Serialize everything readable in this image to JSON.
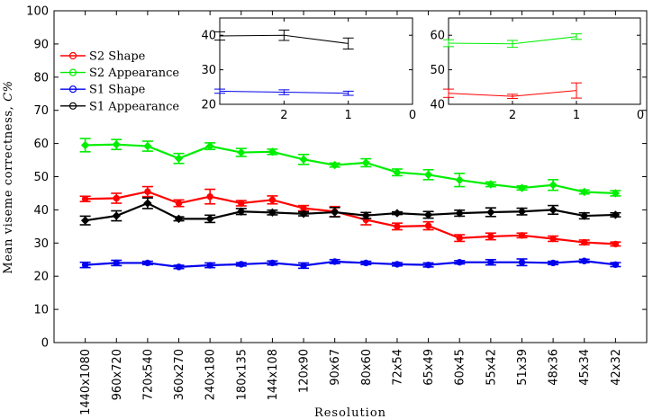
{
  "chart_data": {
    "type": "line",
    "xlabel": "Resolution",
    "ylabel": "Mean viseme correctness, C%",
    "ylabel_text": "Mean viseme correctness, ",
    "ylabel_symbol": "C%",
    "ylim": [
      0,
      100
    ],
    "yticks": [
      0,
      10,
      20,
      30,
      40,
      50,
      60,
      70,
      80,
      90,
      100
    ],
    "categories": [
      "1440x1080",
      "960x720",
      "720x540",
      "360x270",
      "240x180",
      "180x135",
      "144x108",
      "120x90",
      "90x67",
      "80x60",
      "72x54",
      "65x49",
      "60x45",
      "55x42",
      "51x39",
      "48x36",
      "45x34",
      "42x32"
    ],
    "legend_position": "upper-left",
    "series": [
      {
        "name": "S2 Shape",
        "color": "#ff0000",
        "marker": "circle",
        "values": [
          43.3,
          43.5,
          45.5,
          42.0,
          44.0,
          42.0,
          43.0,
          40.5,
          39.5,
          37.0,
          35.0,
          35.2,
          31.5,
          32.0,
          32.3,
          31.3,
          30.2,
          29.7
        ],
        "errors": [
          0.8,
          1.5,
          1.5,
          1.0,
          2.2,
          0.8,
          1.2,
          0.8,
          1.5,
          1.5,
          1.0,
          1.2,
          1.0,
          1.0,
          0.7,
          0.8,
          0.7,
          0.6
        ]
      },
      {
        "name": "S2 Appearance",
        "color": "#00ee00",
        "marker": "diamond",
        "values": [
          59.5,
          59.7,
          59.2,
          55.5,
          59.2,
          57.3,
          57.5,
          55.2,
          53.5,
          54.2,
          51.3,
          50.6,
          49.0,
          47.7,
          46.6,
          47.5,
          45.4,
          45.0
        ],
        "errors": [
          2.0,
          1.5,
          1.5,
          1.5,
          1.0,
          1.2,
          0.8,
          1.5,
          0.6,
          1.2,
          1.0,
          1.5,
          2.0,
          0.7,
          0.6,
          1.6,
          0.6,
          0.8
        ]
      },
      {
        "name": "S1 Shape",
        "color": "#0000ee",
        "marker": "circle",
        "values": [
          23.4,
          24.0,
          24.0,
          22.8,
          23.3,
          23.6,
          24.0,
          23.2,
          24.4,
          24.0,
          23.6,
          23.4,
          24.2,
          24.2,
          24.2,
          24.0,
          24.6,
          23.5
        ],
        "errors": [
          0.8,
          0.8,
          0.5,
          0.5,
          0.7,
          0.5,
          0.6,
          0.8,
          0.6,
          0.5,
          0.5,
          0.6,
          0.5,
          0.8,
          1.0,
          0.5,
          0.5,
          0.6
        ]
      },
      {
        "name": "S1 Appearance",
        "color": "#000000",
        "marker": "diamond",
        "values": [
          36.8,
          38.2,
          42.0,
          37.3,
          37.3,
          39.5,
          39.2,
          38.8,
          39.3,
          38.3,
          39.0,
          38.5,
          39.0,
          39.3,
          39.5,
          40.0,
          38.2,
          38.5
        ],
        "errors": [
          1.3,
          1.5,
          1.6,
          0.6,
          1.1,
          0.9,
          0.7,
          0.6,
          1.4,
          0.9,
          0.4,
          1.0,
          0.9,
          1.3,
          1.0,
          1.3,
          0.9,
          0.6
        ]
      }
    ],
    "insets": [
      {
        "ylim": [
          20,
          45
        ],
        "yticks": [
          20,
          30,
          40
        ],
        "xlim": [
          3,
          0
        ],
        "xticks": [
          2,
          1,
          0
        ],
        "series": [
          {
            "name": "S1 Appearance",
            "color": "#000000",
            "x": [
              3,
              2,
              1
            ],
            "values": [
              39.8,
              40.0,
              37.6
            ],
            "errors": [
              1.2,
              1.5,
              1.6
            ]
          },
          {
            "name": "S1 Shape",
            "color": "#0000ee",
            "x": [
              3,
              2,
              1
            ],
            "values": [
              23.8,
              23.5,
              23.2
            ],
            "errors": [
              0.6,
              0.7,
              0.6
            ]
          }
        ]
      },
      {
        "ylim": [
          40,
          65
        ],
        "yticks": [
          40,
          50,
          60
        ],
        "xlim": [
          3,
          0
        ],
        "xticks": [
          2,
          1,
          0
        ],
        "series": [
          {
            "name": "S2 Appearance",
            "color": "#00ee00",
            "x": [
              3,
              2,
              1
            ],
            "values": [
              57.7,
              57.5,
              59.6
            ],
            "errors": [
              1.0,
              1.0,
              0.8
            ]
          },
          {
            "name": "S2 Shape",
            "color": "#ff0000",
            "x": [
              3,
              2,
              1
            ],
            "values": [
              43.2,
              42.3,
              44.0
            ],
            "errors": [
              1.2,
              0.6,
              2.2
            ]
          }
        ]
      }
    ]
  }
}
